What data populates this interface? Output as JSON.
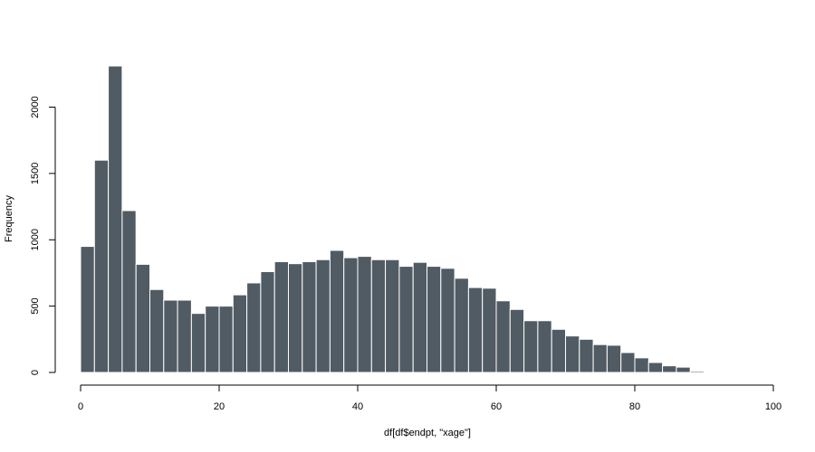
{
  "chart_data": {
    "type": "bar",
    "title": "",
    "xlabel": "df[df$endpt, \"xage\"]",
    "ylabel": "Frequency",
    "xlim": [
      0,
      100
    ],
    "ylim": [
      0,
      2310
    ],
    "x_ticks": [
      0,
      20,
      40,
      60,
      80,
      100
    ],
    "y_ticks": [
      0,
      500,
      1000,
      1500,
      2000
    ],
    "bin_width": 2,
    "bin_starts": [
      0,
      2,
      4,
      6,
      8,
      10,
      12,
      14,
      16,
      18,
      20,
      22,
      24,
      26,
      28,
      30,
      32,
      34,
      36,
      38,
      40,
      42,
      44,
      46,
      48,
      50,
      52,
      54,
      56,
      58,
      60,
      62,
      64,
      66,
      68,
      70,
      72,
      74,
      76,
      78,
      80,
      82,
      84,
      86,
      88
    ],
    "values": [
      950,
      1600,
      2310,
      1220,
      815,
      625,
      545,
      545,
      445,
      500,
      500,
      585,
      675,
      760,
      835,
      820,
      835,
      850,
      920,
      865,
      875,
      850,
      850,
      800,
      830,
      800,
      785,
      710,
      640,
      635,
      540,
      475,
      390,
      390,
      325,
      275,
      250,
      210,
      205,
      150,
      110,
      75,
      50,
      40,
      10
    ],
    "grid": false,
    "bar_color": "#515b63"
  }
}
